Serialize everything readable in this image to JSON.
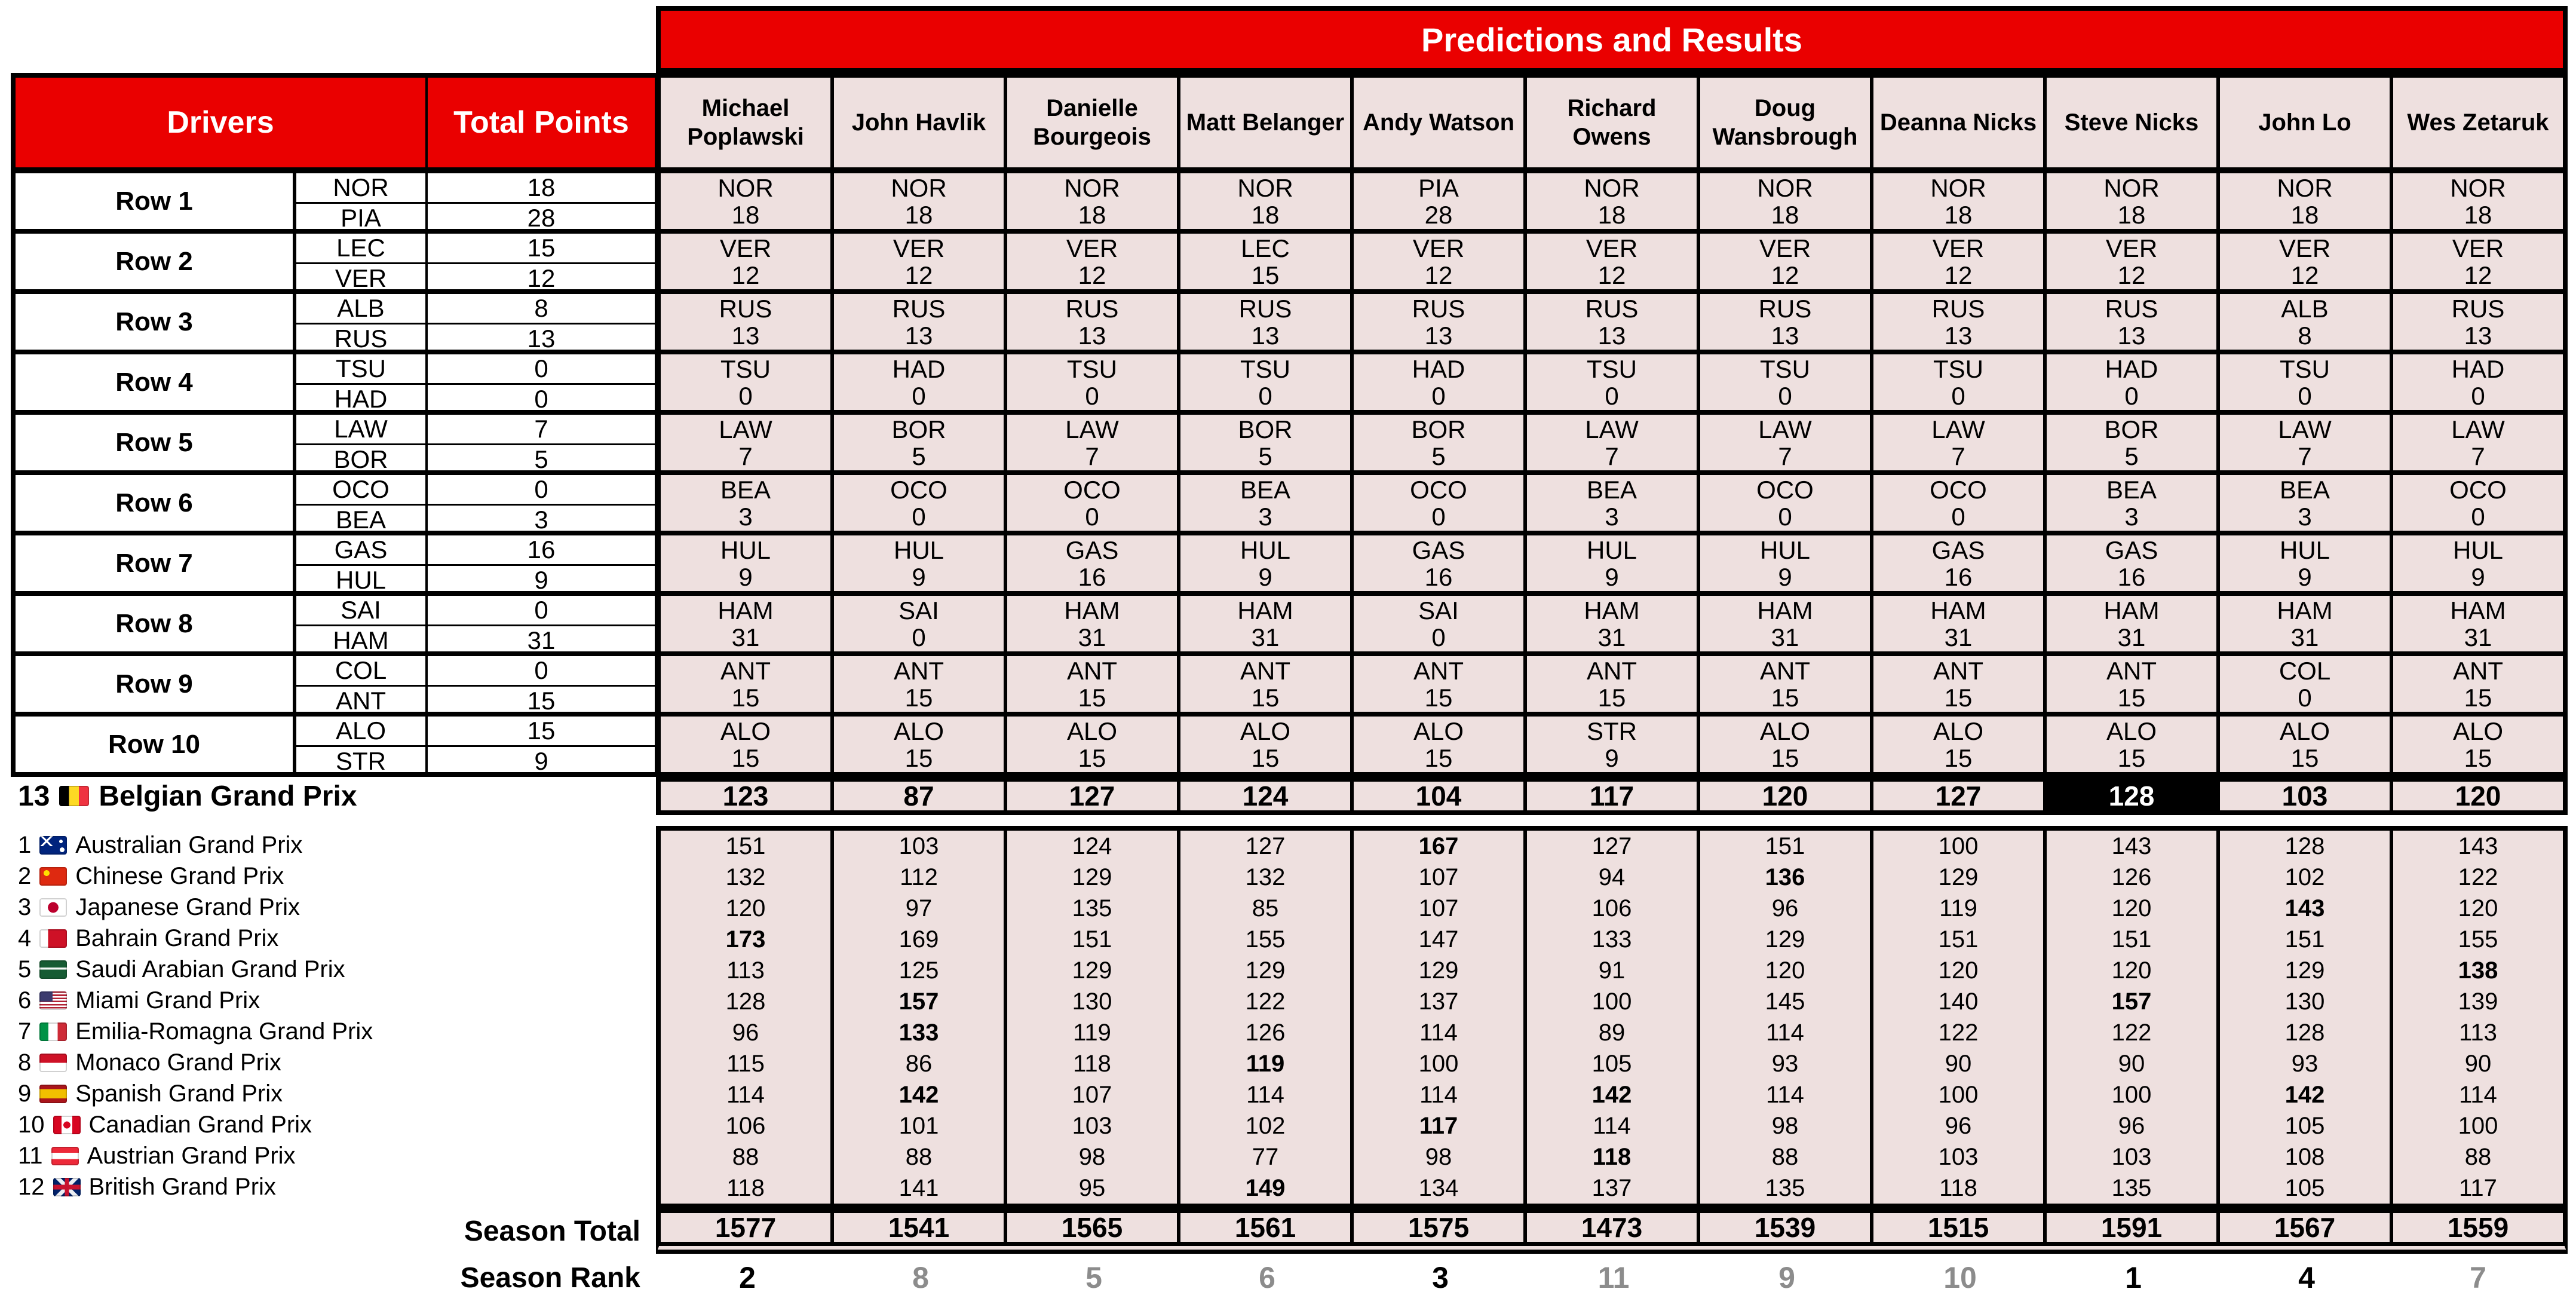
{
  "banner": {
    "title": "Predictions and Results"
  },
  "left_headers": {
    "drivers": "Drivers",
    "total_points": "Total Points"
  },
  "predictors": [
    "Michael Poplawski",
    "John Havlik",
    "Danielle Bourgeois",
    "Matt Belanger",
    "Andy Watson",
    "Richard Owens",
    "Doug Wansbrough",
    "Deanna Nicks",
    "Steve Nicks",
    "John Lo",
    "Wes Zetaruk"
  ],
  "grid_rows": [
    {
      "label": "Row 1",
      "top": {
        "c": "NOR",
        "p": "18"
      },
      "bottom": {
        "c": "PIA",
        "p": "28"
      },
      "picks": [
        {
          "c": "NOR",
          "p": "18"
        },
        {
          "c": "NOR",
          "p": "18"
        },
        {
          "c": "NOR",
          "p": "18"
        },
        {
          "c": "NOR",
          "p": "18"
        },
        {
          "c": "PIA",
          "p": "28"
        },
        {
          "c": "NOR",
          "p": "18"
        },
        {
          "c": "NOR",
          "p": "18"
        },
        {
          "c": "NOR",
          "p": "18"
        },
        {
          "c": "NOR",
          "p": "18"
        },
        {
          "c": "NOR",
          "p": "18"
        },
        {
          "c": "NOR",
          "p": "18"
        }
      ]
    },
    {
      "label": "Row 2",
      "top": {
        "c": "LEC",
        "p": "15"
      },
      "bottom": {
        "c": "VER",
        "p": "12"
      },
      "picks": [
        {
          "c": "VER",
          "p": "12"
        },
        {
          "c": "VER",
          "p": "12"
        },
        {
          "c": "VER",
          "p": "12"
        },
        {
          "c": "LEC",
          "p": "15"
        },
        {
          "c": "VER",
          "p": "12"
        },
        {
          "c": "VER",
          "p": "12"
        },
        {
          "c": "VER",
          "p": "12"
        },
        {
          "c": "VER",
          "p": "12"
        },
        {
          "c": "VER",
          "p": "12"
        },
        {
          "c": "VER",
          "p": "12"
        },
        {
          "c": "VER",
          "p": "12"
        }
      ]
    },
    {
      "label": "Row 3",
      "top": {
        "c": "ALB",
        "p": "8"
      },
      "bottom": {
        "c": "RUS",
        "p": "13"
      },
      "picks": [
        {
          "c": "RUS",
          "p": "13"
        },
        {
          "c": "RUS",
          "p": "13"
        },
        {
          "c": "RUS",
          "p": "13"
        },
        {
          "c": "RUS",
          "p": "13"
        },
        {
          "c": "RUS",
          "p": "13"
        },
        {
          "c": "RUS",
          "p": "13"
        },
        {
          "c": "RUS",
          "p": "13"
        },
        {
          "c": "RUS",
          "p": "13"
        },
        {
          "c": "RUS",
          "p": "13"
        },
        {
          "c": "ALB",
          "p": "8"
        },
        {
          "c": "RUS",
          "p": "13"
        }
      ]
    },
    {
      "label": "Row 4",
      "top": {
        "c": "TSU",
        "p": "0"
      },
      "bottom": {
        "c": "HAD",
        "p": "0"
      },
      "picks": [
        {
          "c": "TSU",
          "p": "0"
        },
        {
          "c": "HAD",
          "p": "0"
        },
        {
          "c": "TSU",
          "p": "0"
        },
        {
          "c": "TSU",
          "p": "0"
        },
        {
          "c": "HAD",
          "p": "0"
        },
        {
          "c": "TSU",
          "p": "0"
        },
        {
          "c": "TSU",
          "p": "0"
        },
        {
          "c": "TSU",
          "p": "0"
        },
        {
          "c": "HAD",
          "p": "0"
        },
        {
          "c": "TSU",
          "p": "0"
        },
        {
          "c": "HAD",
          "p": "0"
        }
      ]
    },
    {
      "label": "Row 5",
      "top": {
        "c": "LAW",
        "p": "7"
      },
      "bottom": {
        "c": "BOR",
        "p": "5"
      },
      "picks": [
        {
          "c": "LAW",
          "p": "7"
        },
        {
          "c": "BOR",
          "p": "5"
        },
        {
          "c": "LAW",
          "p": "7"
        },
        {
          "c": "BOR",
          "p": "5"
        },
        {
          "c": "BOR",
          "p": "5"
        },
        {
          "c": "LAW",
          "p": "7"
        },
        {
          "c": "LAW",
          "p": "7"
        },
        {
          "c": "LAW",
          "p": "7"
        },
        {
          "c": "BOR",
          "p": "5"
        },
        {
          "c": "LAW",
          "p": "7"
        },
        {
          "c": "LAW",
          "p": "7"
        }
      ]
    },
    {
      "label": "Row 6",
      "top": {
        "c": "OCO",
        "p": "0"
      },
      "bottom": {
        "c": "BEA",
        "p": "3"
      },
      "picks": [
        {
          "c": "BEA",
          "p": "3"
        },
        {
          "c": "OCO",
          "p": "0"
        },
        {
          "c": "OCO",
          "p": "0"
        },
        {
          "c": "BEA",
          "p": "3"
        },
        {
          "c": "OCO",
          "p": "0"
        },
        {
          "c": "BEA",
          "p": "3"
        },
        {
          "c": "OCO",
          "p": "0"
        },
        {
          "c": "OCO",
          "p": "0"
        },
        {
          "c": "BEA",
          "p": "3"
        },
        {
          "c": "BEA",
          "p": "3"
        },
        {
          "c": "OCO",
          "p": "0"
        }
      ]
    },
    {
      "label": "Row 7",
      "top": {
        "c": "GAS",
        "p": "16"
      },
      "bottom": {
        "c": "HUL",
        "p": "9"
      },
      "picks": [
        {
          "c": "HUL",
          "p": "9"
        },
        {
          "c": "HUL",
          "p": "9"
        },
        {
          "c": "GAS",
          "p": "16"
        },
        {
          "c": "HUL",
          "p": "9"
        },
        {
          "c": "GAS",
          "p": "16"
        },
        {
          "c": "HUL",
          "p": "9"
        },
        {
          "c": "HUL",
          "p": "9"
        },
        {
          "c": "GAS",
          "p": "16"
        },
        {
          "c": "GAS",
          "p": "16"
        },
        {
          "c": "HUL",
          "p": "9"
        },
        {
          "c": "HUL",
          "p": "9"
        }
      ]
    },
    {
      "label": "Row 8",
      "top": {
        "c": "SAI",
        "p": "0"
      },
      "bottom": {
        "c": "HAM",
        "p": "31"
      },
      "picks": [
        {
          "c": "HAM",
          "p": "31"
        },
        {
          "c": "SAI",
          "p": "0"
        },
        {
          "c": "HAM",
          "p": "31"
        },
        {
          "c": "HAM",
          "p": "31"
        },
        {
          "c": "SAI",
          "p": "0"
        },
        {
          "c": "HAM",
          "p": "31"
        },
        {
          "c": "HAM",
          "p": "31"
        },
        {
          "c": "HAM",
          "p": "31"
        },
        {
          "c": "HAM",
          "p": "31"
        },
        {
          "c": "HAM",
          "p": "31"
        },
        {
          "c": "HAM",
          "p": "31"
        }
      ]
    },
    {
      "label": "Row 9",
      "top": {
        "c": "COL",
        "p": "0"
      },
      "bottom": {
        "c": "ANT",
        "p": "15"
      },
      "picks": [
        {
          "c": "ANT",
          "p": "15"
        },
        {
          "c": "ANT",
          "p": "15"
        },
        {
          "c": "ANT",
          "p": "15"
        },
        {
          "c": "ANT",
          "p": "15"
        },
        {
          "c": "ANT",
          "p": "15"
        },
        {
          "c": "ANT",
          "p": "15"
        },
        {
          "c": "ANT",
          "p": "15"
        },
        {
          "c": "ANT",
          "p": "15"
        },
        {
          "c": "ANT",
          "p": "15"
        },
        {
          "c": "COL",
          "p": "0"
        },
        {
          "c": "ANT",
          "p": "15"
        }
      ]
    },
    {
      "label": "Row 10",
      "top": {
        "c": "ALO",
        "p": "15"
      },
      "bottom": {
        "c": "STR",
        "p": "9"
      },
      "picks": [
        {
          "c": "ALO",
          "p": "15"
        },
        {
          "c": "ALO",
          "p": "15"
        },
        {
          "c": "ALO",
          "p": "15"
        },
        {
          "c": "ALO",
          "p": "15"
        },
        {
          "c": "ALO",
          "p": "15"
        },
        {
          "c": "STR",
          "p": "9"
        },
        {
          "c": "ALO",
          "p": "15"
        },
        {
          "c": "ALO",
          "p": "15"
        },
        {
          "c": "ALO",
          "p": "15"
        },
        {
          "c": "ALO",
          "p": "15"
        },
        {
          "c": "ALO",
          "p": "15"
        }
      ]
    }
  ],
  "current_race": {
    "number": "13",
    "flag": "be",
    "name": "Belgian Grand Prix",
    "totals": [
      123,
      87,
      127,
      124,
      104,
      117,
      120,
      127,
      128,
      103,
      120
    ]
  },
  "races": [
    {
      "number": "1",
      "flag": "au",
      "name": "Australian Grand Prix",
      "scores": [
        151,
        103,
        124,
        127,
        167,
        127,
        151,
        100,
        143,
        128,
        143
      ]
    },
    {
      "number": "2",
      "flag": "cn",
      "name": "Chinese Grand Prix",
      "scores": [
        132,
        112,
        129,
        132,
        107,
        94,
        136,
        129,
        126,
        102,
        122
      ]
    },
    {
      "number": "3",
      "flag": "jp",
      "name": "Japanese Grand Prix",
      "scores": [
        120,
        97,
        135,
        85,
        107,
        106,
        96,
        119,
        120,
        143,
        120
      ]
    },
    {
      "number": "4",
      "flag": "bh",
      "name": "Bahrain Grand Prix",
      "scores": [
        173,
        169,
        151,
        155,
        147,
        133,
        129,
        151,
        151,
        151,
        155
      ]
    },
    {
      "number": "5",
      "flag": "sa",
      "name": "Saudi Arabian Grand Prix",
      "scores": [
        113,
        125,
        129,
        129,
        129,
        91,
        120,
        120,
        120,
        129,
        138
      ]
    },
    {
      "number": "6",
      "flag": "us",
      "name": "Miami Grand Prix",
      "scores": [
        128,
        157,
        130,
        122,
        137,
        100,
        145,
        140,
        157,
        130,
        139
      ]
    },
    {
      "number": "7",
      "flag": "it",
      "name": "Emilia-Romagna Grand Prix",
      "scores": [
        96,
        133,
        119,
        126,
        114,
        89,
        114,
        122,
        122,
        128,
        113
      ]
    },
    {
      "number": "8",
      "flag": "mc",
      "name": "Monaco Grand Prix",
      "scores": [
        115,
        86,
        118,
        119,
        100,
        105,
        93,
        90,
        90,
        93,
        90
      ]
    },
    {
      "number": "9",
      "flag": "es",
      "name": "Spanish Grand Prix",
      "scores": [
        114,
        142,
        107,
        114,
        114,
        142,
        114,
        100,
        100,
        142,
        114
      ]
    },
    {
      "number": "10",
      "flag": "ca",
      "name": "Canadian Grand Prix",
      "scores": [
        106,
        101,
        103,
        102,
        117,
        114,
        98,
        96,
        96,
        105,
        100
      ]
    },
    {
      "number": "11",
      "flag": "at",
      "name": "Austrian Grand Prix",
      "scores": [
        88,
        88,
        98,
        77,
        98,
        118,
        88,
        103,
        103,
        108,
        88
      ]
    },
    {
      "number": "12",
      "flag": "gb",
      "name": "British Grand Prix",
      "scores": [
        118,
        141,
        95,
        149,
        134,
        137,
        135,
        118,
        135,
        105,
        117
      ]
    }
  ],
  "season": {
    "total_label": "Season Total",
    "totals": [
      1577,
      1541,
      1565,
      1561,
      1575,
      1473,
      1539,
      1515,
      1591,
      1567,
      1559
    ],
    "rank_label": "Season Rank",
    "ranks": [
      2,
      8,
      5,
      6,
      3,
      11,
      9,
      10,
      1,
      4,
      7
    ]
  },
  "colors": {
    "header_red": "#ea0000",
    "cell_pink": "#eee0df",
    "rank_gray": "#8c8c8c",
    "highlight_bg": "#000000",
    "highlight_text": "#ffffff"
  }
}
